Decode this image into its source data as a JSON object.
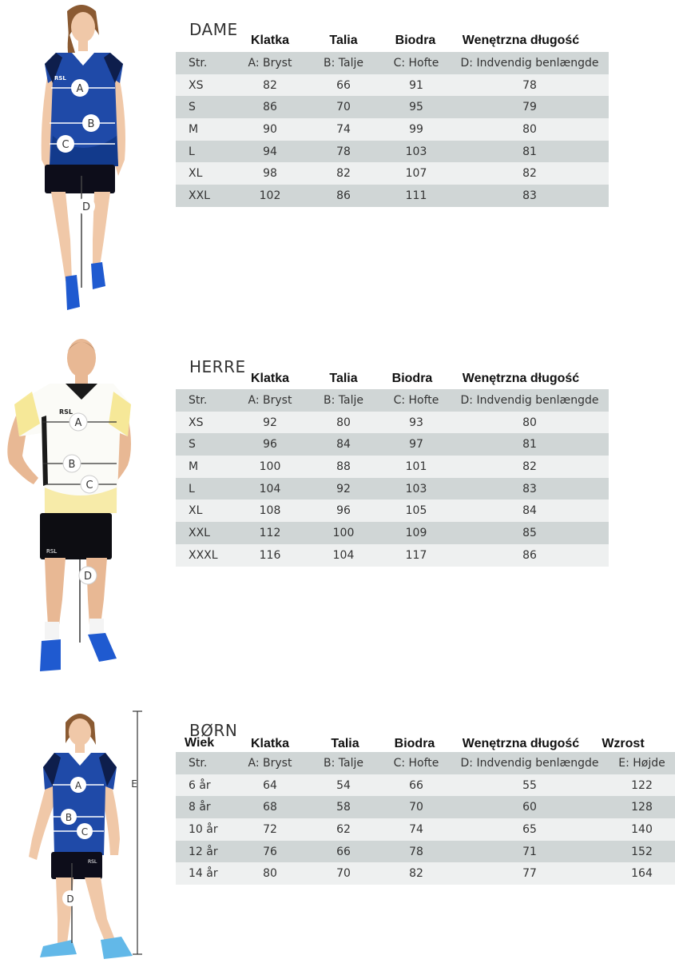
{
  "sections": {
    "dame": {
      "title": "DAME",
      "headers": [
        "Klatka",
        "Talia",
        "Biodra",
        "Wenętrzna długość"
      ],
      "columns": [
        "Str.",
        "A: Bryst",
        "B: Talje",
        "C: Hofte",
        "D: Indvendig benlængde"
      ],
      "rows": [
        [
          "XS",
          "82",
          "66",
          "91",
          "78"
        ],
        [
          "S",
          "86",
          "70",
          "95",
          "79"
        ],
        [
          "M",
          "90",
          "74",
          "99",
          "80"
        ],
        [
          "L",
          "94",
          "78",
          "103",
          "81"
        ],
        [
          "XL",
          "98",
          "82",
          "107",
          "82"
        ],
        [
          "XXL",
          "102",
          "86",
          "111",
          "83"
        ]
      ],
      "figure": {
        "markers": [
          "A",
          "B",
          "C",
          "D"
        ],
        "logo": "RSL",
        "shirt_color": "#1f4aa8"
      }
    },
    "herre": {
      "title": "HERRE",
      "headers": [
        "Klatka",
        "Talia",
        "Biodra",
        "Wenętrzna długość"
      ],
      "columns": [
        "Str.",
        "A: Bryst",
        "B: Talje",
        "C: Hofte",
        "D: Indvendig benlængde"
      ],
      "rows": [
        [
          "XS",
          "92",
          "80",
          "93",
          "80"
        ],
        [
          "S",
          "96",
          "84",
          "97",
          "81"
        ],
        [
          "M",
          "100",
          "88",
          "101",
          "82"
        ],
        [
          "L",
          "104",
          "92",
          "103",
          "83"
        ],
        [
          "XL",
          "108",
          "96",
          "105",
          "84"
        ],
        [
          "XXL",
          "112",
          "100",
          "109",
          "85"
        ],
        [
          "XXXL",
          "116",
          "104",
          "117",
          "86"
        ]
      ],
      "figure": {
        "markers": [
          "A",
          "B",
          "C",
          "D"
        ],
        "logo": "RSL",
        "shirt_color": "#ffffff"
      }
    },
    "born": {
      "title": "BØRN",
      "age_header": "Wiek",
      "headers": [
        "Klatka",
        "Talia",
        "Biodra",
        "Wenętrzna długość",
        "Wzrost"
      ],
      "columns": [
        "Str.",
        "A: Bryst",
        "B: Talje",
        "C: Hofte",
        "D: Indvendig benlængde",
        "E: Højde"
      ],
      "rows": [
        [
          "6 år",
          "64",
          "54",
          "66",
          "55",
          "122"
        ],
        [
          "8 år",
          "68",
          "58",
          "70",
          "60",
          "128"
        ],
        [
          "10 år",
          "72",
          "62",
          "74",
          "65",
          "140"
        ],
        [
          "12 år",
          "76",
          "66",
          "78",
          "71",
          "152"
        ],
        [
          "14 år",
          "80",
          "70",
          "82",
          "77",
          "164"
        ]
      ],
      "figure": {
        "markers": [
          "A",
          "B",
          "C",
          "D"
        ],
        "height_marker": "E",
        "logo": "RSL",
        "shirt_color": "#1f4aa8"
      }
    }
  }
}
